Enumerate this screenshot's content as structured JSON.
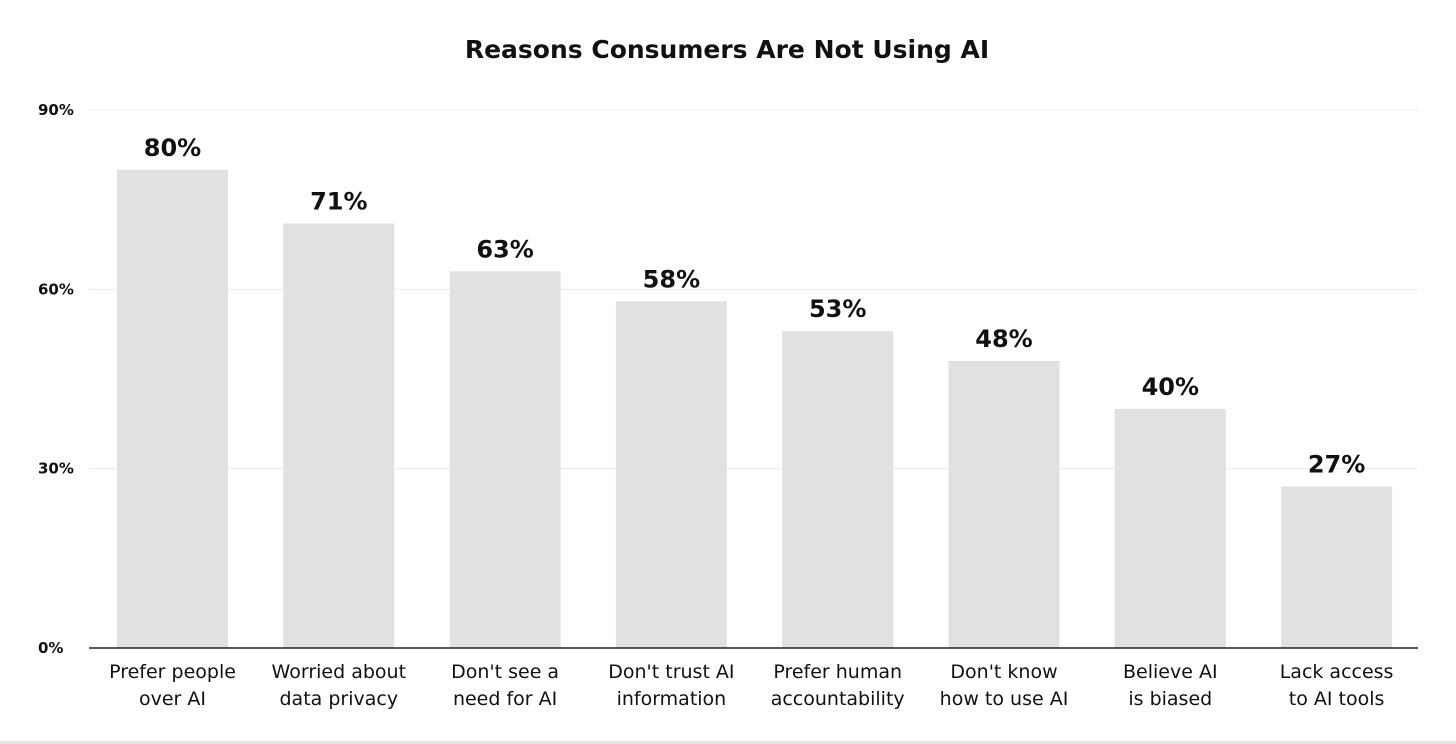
{
  "chart_data": {
    "type": "bar",
    "title": "Reasons Consumers Are Not Using AI",
    "xlabel": "",
    "ylabel": "",
    "ylim": [
      0,
      90
    ],
    "yticks": [
      {
        "value": 0,
        "label": "0%"
      },
      {
        "value": 30,
        "label": "30%"
      },
      {
        "value": 60,
        "label": "60%"
      },
      {
        "value": 90,
        "label": "90%"
      }
    ],
    "grid": true,
    "categories": [
      [
        "Prefer people",
        "over AI"
      ],
      [
        "Worried about",
        "data privacy"
      ],
      [
        "Don't see a",
        "need for AI"
      ],
      [
        "Don't trust AI",
        "information"
      ],
      [
        "Prefer human",
        "accountability"
      ],
      [
        "Don't know",
        "how to use AI"
      ],
      [
        "Believe AI",
        "is biased"
      ],
      [
        "Lack access",
        "to AI tools"
      ]
    ],
    "values": [
      80,
      71,
      63,
      58,
      53,
      48,
      40,
      27
    ],
    "value_labels": [
      "80%",
      "71%",
      "63%",
      "58%",
      "53%",
      "48%",
      "40%",
      "27%"
    ],
    "bar_color": "#e1e1e3",
    "text_color": "#111111"
  }
}
